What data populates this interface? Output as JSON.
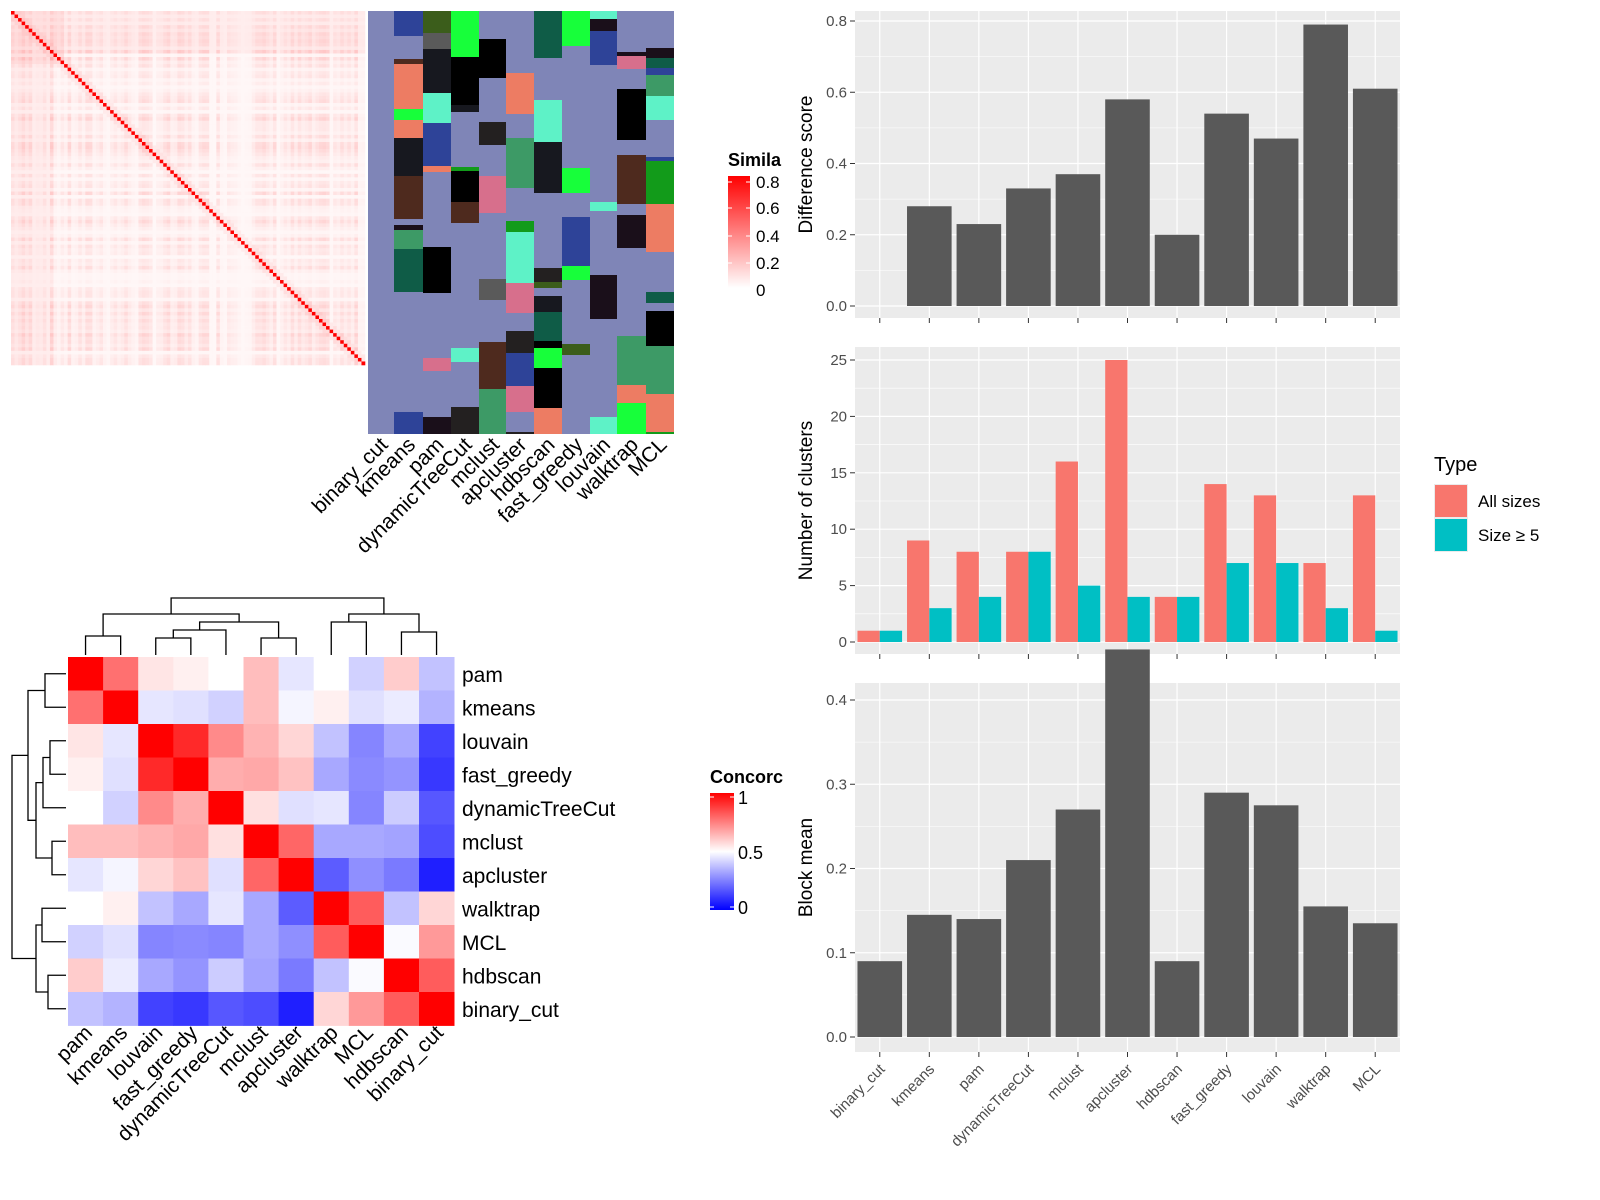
{
  "methods": [
    "binary_cut",
    "kmeans",
    "pam",
    "dynamicTreeCut",
    "mclust",
    "apcluster",
    "hdbscan",
    "fast_greedy",
    "louvain",
    "walktrap",
    "MCL"
  ],
  "similarity_legend": {
    "title": "Simila",
    "ticks": [
      "0.8",
      "0.6",
      "0.4",
      "0.2",
      "0"
    ]
  },
  "concordance_legend": {
    "title": "Concorc",
    "ticks": [
      "1",
      "0.5",
      "0"
    ]
  },
  "concordance_order": [
    "pam",
    "kmeans",
    "louvain",
    "fast_greedy",
    "dynamicTreeCut",
    "mclust",
    "apcluster",
    "walktrap",
    "MCL",
    "hdbscan",
    "binary_cut"
  ],
  "concordance_matrix": [
    [
      1.0,
      0.78,
      0.55,
      0.53,
      0.5,
      0.63,
      0.45,
      0.5,
      0.41,
      0.6,
      0.38
    ],
    [
      0.78,
      1.0,
      0.45,
      0.44,
      0.41,
      0.63,
      0.48,
      0.53,
      0.44,
      0.46,
      0.35
    ],
    [
      0.55,
      0.45,
      1.0,
      0.92,
      0.73,
      0.65,
      0.58,
      0.38,
      0.26,
      0.33,
      0.13
    ],
    [
      0.53,
      0.44,
      0.92,
      1.0,
      0.66,
      0.67,
      0.62,
      0.33,
      0.27,
      0.29,
      0.11
    ],
    [
      0.5,
      0.41,
      0.73,
      0.66,
      1.0,
      0.56,
      0.44,
      0.45,
      0.26,
      0.4,
      0.17
    ],
    [
      0.63,
      0.63,
      0.65,
      0.67,
      0.56,
      1.0,
      0.8,
      0.33,
      0.33,
      0.32,
      0.15
    ],
    [
      0.45,
      0.48,
      0.58,
      0.62,
      0.44,
      0.8,
      1.0,
      0.18,
      0.28,
      0.24,
      0.06
    ],
    [
      0.5,
      0.53,
      0.38,
      0.33,
      0.45,
      0.33,
      0.18,
      1.0,
      0.82,
      0.38,
      0.58
    ],
    [
      0.41,
      0.44,
      0.26,
      0.27,
      0.26,
      0.33,
      0.28,
      0.82,
      1.0,
      0.49,
      0.7
    ],
    [
      0.6,
      0.46,
      0.33,
      0.29,
      0.4,
      0.32,
      0.24,
      0.38,
      0.49,
      1.0,
      0.82
    ],
    [
      0.38,
      0.35,
      0.13,
      0.11,
      0.17,
      0.15,
      0.06,
      0.58,
      0.7,
      0.82,
      1.0
    ]
  ],
  "colors": {
    "panel_bg": "#ebebeb",
    "grid": "#ffffff",
    "bar_dark": "#595959",
    "all_sizes": "#F8766D",
    "size_ge5": "#00BFC4",
    "high": "#ff0000",
    "mid": "#ffffff",
    "low": "#0000ff"
  },
  "chart_data": [
    {
      "type": "bar",
      "ylabel": "Difference score",
      "ylim": [
        0,
        0.84
      ],
      "yticks": [
        "0.0",
        "0.2",
        "0.4",
        "0.6",
        "0.8"
      ],
      "categories": [
        "binary_cut",
        "kmeans",
        "pam",
        "dynamicTreeCut",
        "mclust",
        "apcluster",
        "hdbscan",
        "fast_greedy",
        "louvain",
        "walktrap",
        "MCL"
      ],
      "values": [
        0.0,
        0.28,
        0.23,
        0.33,
        0.37,
        0.58,
        0.2,
        0.54,
        0.47,
        0.79,
        0.61
      ]
    },
    {
      "type": "bar",
      "ylabel": "Number of clusters",
      "ylim": [
        0,
        26
      ],
      "yticks": [
        "0",
        "5",
        "10",
        "15",
        "20",
        "25"
      ],
      "categories": [
        "binary_cut",
        "kmeans",
        "pam",
        "dynamicTreeCut",
        "mclust",
        "apcluster",
        "hdbscan",
        "fast_greedy",
        "louvain",
        "walktrap",
        "MCL"
      ],
      "legend_title": "Type",
      "legend_position": "right",
      "series": [
        {
          "name": "All sizes",
          "values": [
            1,
            9,
            8,
            8,
            16,
            25,
            4,
            14,
            13,
            7,
            13
          ]
        },
        {
          "name": "Size ≥ 5",
          "values": [
            1,
            3,
            4,
            8,
            5,
            4,
            4,
            7,
            7,
            3,
            1
          ]
        }
      ]
    },
    {
      "type": "bar",
      "ylabel": "Block mean",
      "ylim": [
        0,
        0.48
      ],
      "yticks": [
        "0.0",
        "0.1",
        "0.2",
        "0.3",
        "0.4"
      ],
      "categories": [
        "binary_cut",
        "kmeans",
        "pam",
        "dynamicTreeCut",
        "mclust",
        "apcluster",
        "hdbscan",
        "fast_greedy",
        "louvain",
        "walktrap",
        "MCL"
      ],
      "values": [
        0.09,
        0.145,
        0.14,
        0.21,
        0.27,
        0.46,
        0.09,
        0.29,
        0.275,
        0.155,
        0.135
      ]
    }
  ]
}
